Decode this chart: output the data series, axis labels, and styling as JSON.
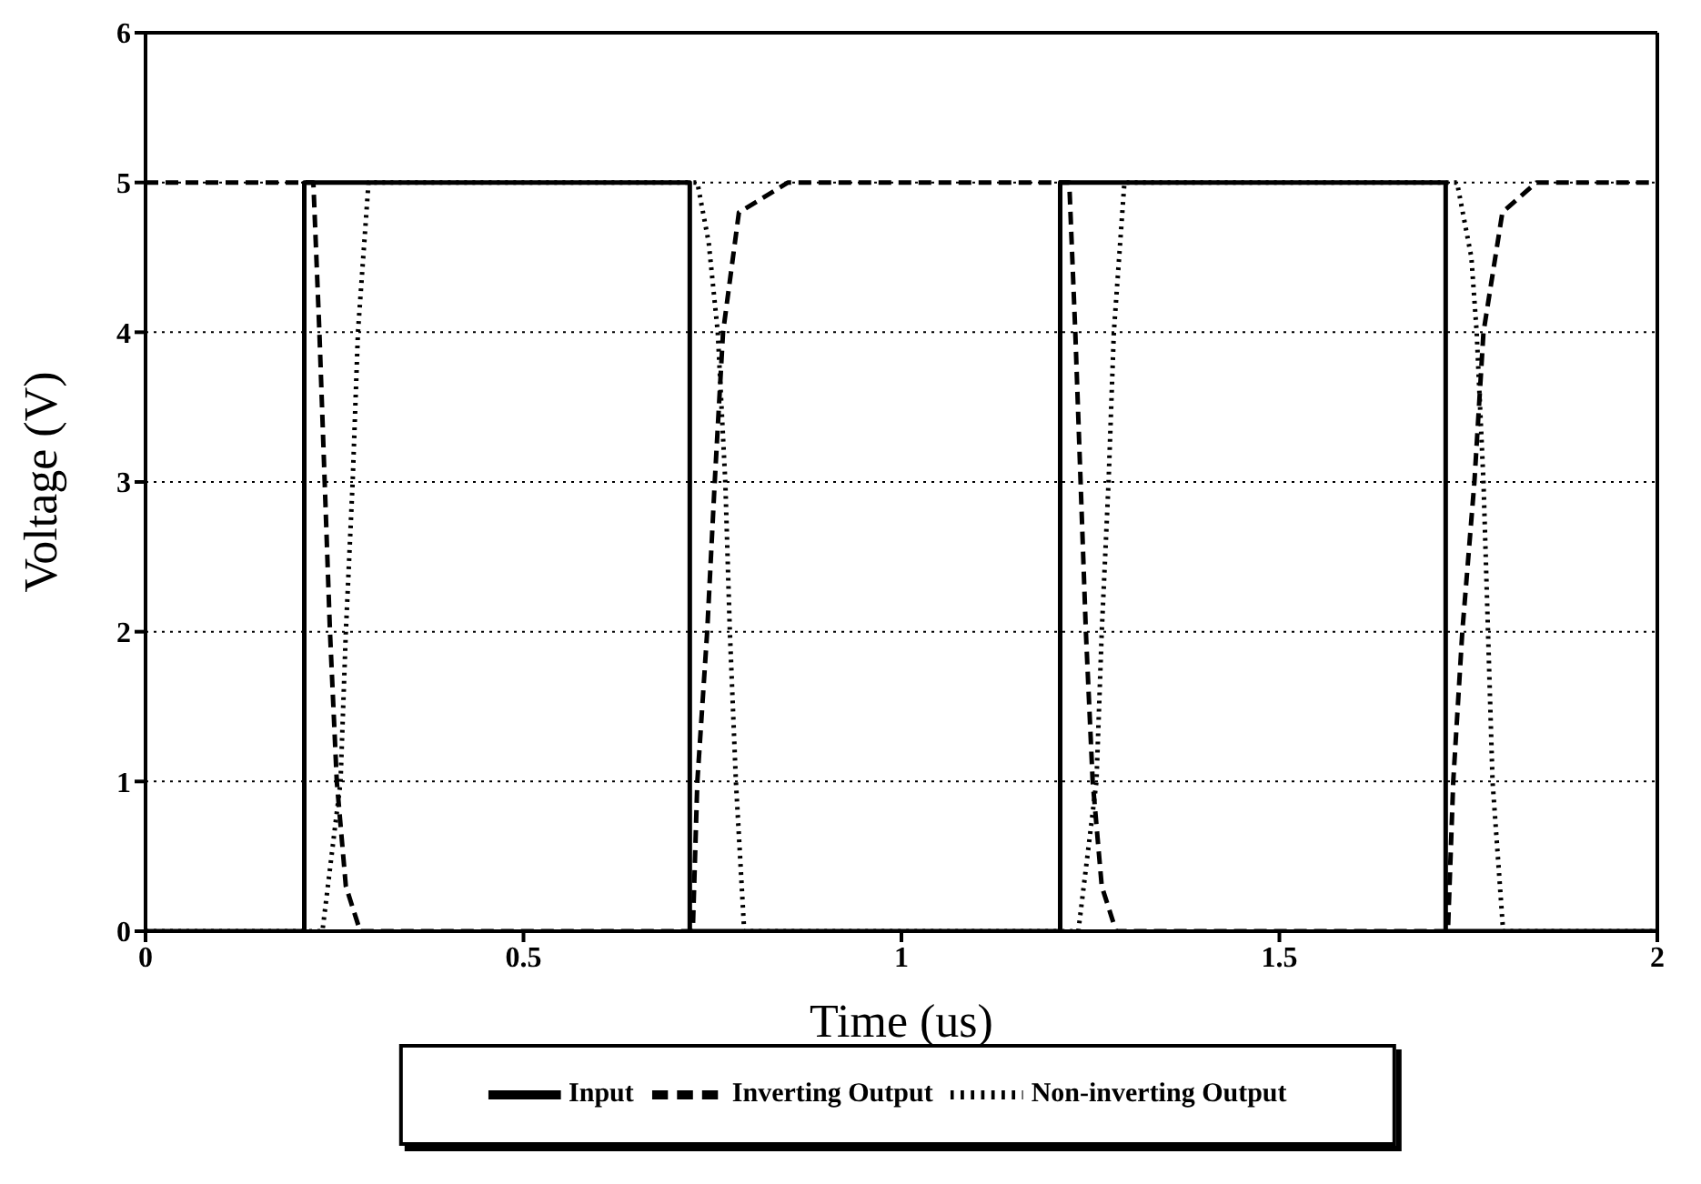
{
  "chart_data": {
    "type": "line",
    "xlabel": "Time (us)",
    "ylabel": "Voltage (V)",
    "xlim": [
      0,
      2
    ],
    "xticks": [
      0,
      0.5,
      1,
      1.5,
      2
    ],
    "ylim": [
      0,
      6
    ],
    "yticks": [
      0,
      1,
      2,
      3,
      4,
      5,
      6
    ],
    "grid": "y",
    "legend": "bottom",
    "marker": "none",
    "series": [
      {
        "name": "Input",
        "color": "#000000",
        "line_style": "solid",
        "x": [
          0,
          0.21,
          0.21,
          0.72,
          0.72,
          1.21,
          1.21,
          1.72,
          1.72,
          2
        ],
        "values": [
          0,
          0,
          5,
          5,
          0,
          0,
          5,
          5,
          0,
          0
        ]
      },
      {
        "name": "Inverting Output",
        "color": "#000000",
        "line_style": "dashed",
        "x": [
          0,
          0.222,
          0.23,
          0.237,
          0.244,
          0.253,
          0.265,
          0.284,
          0.724,
          0.73,
          0.743,
          0.753,
          0.764,
          0.785,
          0.85,
          1.222,
          1.23,
          1.237,
          1.244,
          1.253,
          1.265,
          1.284,
          1.723,
          1.73,
          1.742,
          1.758,
          1.77,
          1.795,
          1.84,
          2
        ],
        "values": [
          5,
          5,
          4,
          3,
          2,
          1,
          0.3,
          0,
          0,
          1,
          2,
          3,
          4,
          4.8,
          5,
          5,
          4,
          3,
          2,
          1,
          0.3,
          0,
          0,
          1,
          2,
          3,
          4,
          4.8,
          5,
          5
        ]
      },
      {
        "name": "Non-inverting Output",
        "color": "#000000",
        "line_style": "dotted",
        "x": [
          0,
          0.234,
          0.258,
          0.265,
          0.274,
          0.281,
          0.295,
          0.73,
          0.745,
          0.757,
          0.767,
          0.773,
          0.781,
          0.792,
          1.234,
          1.258,
          1.265,
          1.274,
          1.281,
          1.295,
          1.735,
          1.754,
          1.761,
          1.77,
          1.776,
          1.782,
          1.796,
          2
        ],
        "values": [
          0,
          0,
          1,
          2,
          3,
          4,
          5,
          5,
          4.6,
          4,
          3,
          2,
          1,
          0,
          0,
          1,
          2,
          3,
          4,
          5,
          5,
          4.5,
          4,
          3,
          2,
          1,
          0,
          0
        ]
      }
    ]
  }
}
